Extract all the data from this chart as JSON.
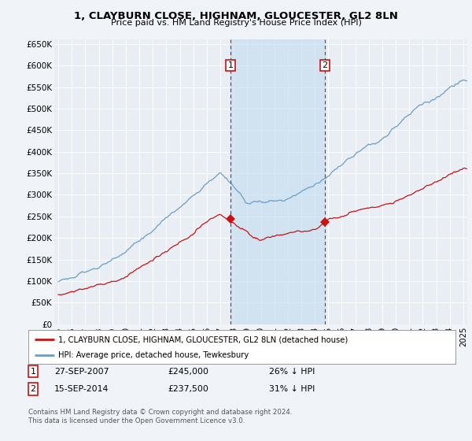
{
  "title": "1, CLAYBURN CLOSE, HIGHNAM, GLOUCESTER, GL2 8LN",
  "subtitle": "Price paid vs. HM Land Registry's House Price Index (HPI)",
  "hpi_color": "#6b9dc8",
  "hpi_fill_color": "#c8dff0",
  "price_color": "#cc1111",
  "background_color": "#f0f4f8",
  "plot_bg_color": "#e8eef4",
  "grid_color": "#ffffff",
  "legend_label_red": "1, CLAYBURN CLOSE, HIGHNAM, GLOUCESTER, GL2 8LN (detached house)",
  "legend_label_blue": "HPI: Average price, detached house, Tewkesbury",
  "marker1_x": 2007.75,
  "marker1_y": 245000,
  "marker2_x": 2014.75,
  "marker2_y": 237500,
  "marker1_date": "27-SEP-2007",
  "marker1_price": "£245,000",
  "marker1_hpi": "26% ↓ HPI",
  "marker2_date": "15-SEP-2014",
  "marker2_price": "£237,500",
  "marker2_hpi": "31% ↓ HPI",
  "footer": "Contains HM Land Registry data © Crown copyright and database right 2024.\nThis data is licensed under the Open Government Licence v3.0.",
  "ylim": [
    0,
    660000
  ],
  "xlim": [
    1994.7,
    2025.3
  ],
  "yticks": [
    0,
    50000,
    100000,
    150000,
    200000,
    250000,
    300000,
    350000,
    400000,
    450000,
    500000,
    550000,
    600000,
    650000
  ],
  "ytick_labels": [
    "£0",
    "£50K",
    "£100K",
    "£150K",
    "£200K",
    "£250K",
    "£300K",
    "£350K",
    "£400K",
    "£450K",
    "£500K",
    "£550K",
    "£600K",
    "£650K"
  ]
}
